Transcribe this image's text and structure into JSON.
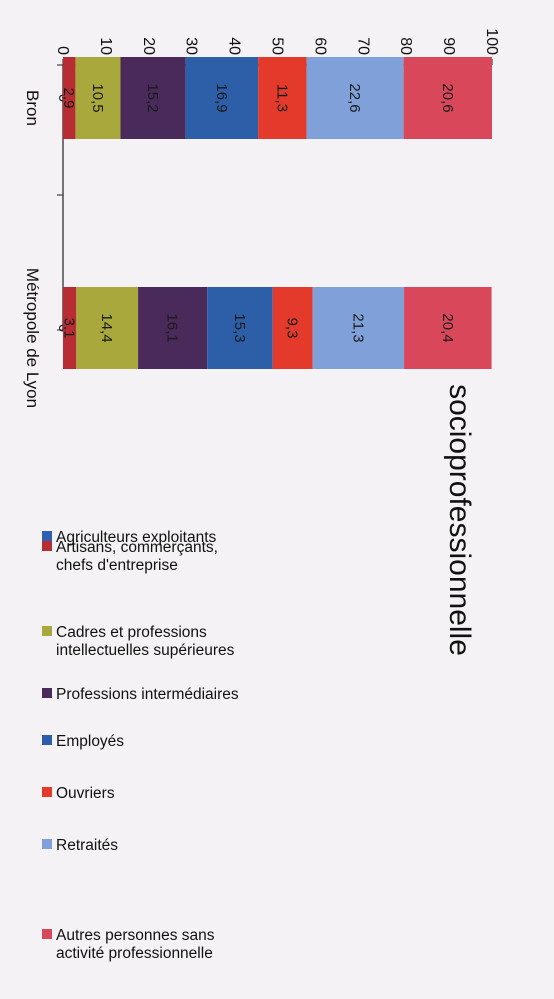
{
  "chart_data": {
    "type": "bar",
    "stacked": true,
    "orientation": "vertical (image rotated 90° clockwise)",
    "title": "socioprofessionnelle",
    "categories": [
      "Bron",
      "Métropole de Lyon"
    ],
    "ylim": [
      0,
      100
    ],
    "yticks": [
      "0",
      "10",
      "20",
      "30",
      "40",
      "50",
      "60",
      "70",
      "80",
      "90",
      "100"
    ],
    "series": [
      {
        "name": "Agriculteurs exploitants",
        "color": "#2f5fb0",
        "values": [
          0,
          0
        ],
        "labels": [
          "0",
          "0"
        ]
      },
      {
        "name": "Artisans, commerçants, chefs d'entreprise",
        "color": "#b82c33",
        "values": [
          2.9,
          3.1
        ],
        "labels": [
          "2,9",
          "3,1"
        ]
      },
      {
        "name": "Cadres et professions intellectuelles supérieures",
        "color": "#a8a83c",
        "values": [
          10.5,
          14.4
        ],
        "labels": [
          "10,5",
          "14,4"
        ]
      },
      {
        "name": "Professions intermédiaires",
        "color": "#4a2a5a",
        "values": [
          15.2,
          16.1
        ],
        "labels": [
          "15,2",
          "16,1"
        ]
      },
      {
        "name": "Employés",
        "color": "#2c5fa8",
        "values": [
          16.9,
          15.3
        ],
        "labels": [
          "16,9",
          "15,3"
        ]
      },
      {
        "name": "Ouvriers",
        "color": "#e33a2c",
        "values": [
          11.3,
          9.3
        ],
        "labels": [
          "11,3",
          "9,3"
        ]
      },
      {
        "name": "Retraités",
        "color": "#7fa0d8",
        "values": [
          22.6,
          21.3
        ],
        "labels": [
          "22,6",
          "21,3"
        ]
      },
      {
        "name": "Autres personnes sans activité professionnelle",
        "color": "#d8485a",
        "values": [
          20.6,
          20.4
        ],
        "labels": [
          "20,6",
          "20,4"
        ]
      }
    ],
    "legend": {
      "placement": "right",
      "entries": [
        {
          "color": "#d8485a",
          "lines": [
            "Autres personnes sans",
            "activité professionnelle"
          ]
        },
        {
          "color": "#7fa0d8",
          "lines": [
            "Retraités"
          ]
        },
        {
          "color": "#e33a2c",
          "lines": [
            "Ouvriers"
          ]
        },
        {
          "color": "#2c5fa8",
          "lines": [
            "Employés"
          ]
        },
        {
          "color": "#4a2a5a",
          "lines": [
            "Professions intermédiaires"
          ]
        },
        {
          "color": "#a8a83c",
          "lines": [
            "Cadres et professions",
            "intellectuelles supérieures"
          ]
        },
        {
          "color": "#b82c33",
          "lines": [
            "Artisans, commerçants,",
            "chefs d'entreprise"
          ]
        },
        {
          "color": "#2f5fb0",
          "lines": [
            "Agriculteurs exploitants"
          ]
        }
      ]
    }
  }
}
